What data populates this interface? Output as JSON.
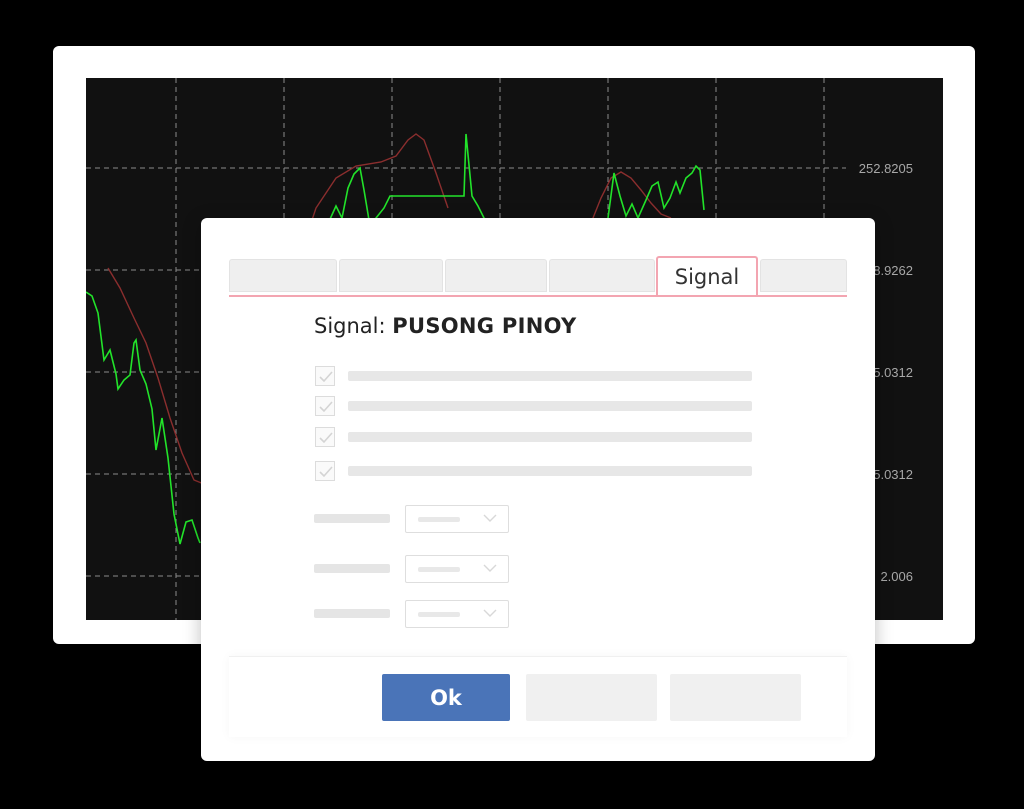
{
  "chart": {
    "background": "#111111",
    "grid_color": "#8a8a8a",
    "price_line_color": "#22e32a",
    "indicator_line_color": "#8b2e2e",
    "price_labels": [
      "252.8205",
      "8.9262",
      "5.0312",
      "5.0312",
      "2.006"
    ]
  },
  "dialog": {
    "active_tab": "Signal",
    "title_prefix": "Signal:",
    "title_name": "PUSONG PINOY",
    "checkbox_count": 4,
    "dropdown_count": 3,
    "ok_label": "Ok",
    "tab_border_color": "#f3a5b1",
    "ok_color": "#4a74b8"
  }
}
